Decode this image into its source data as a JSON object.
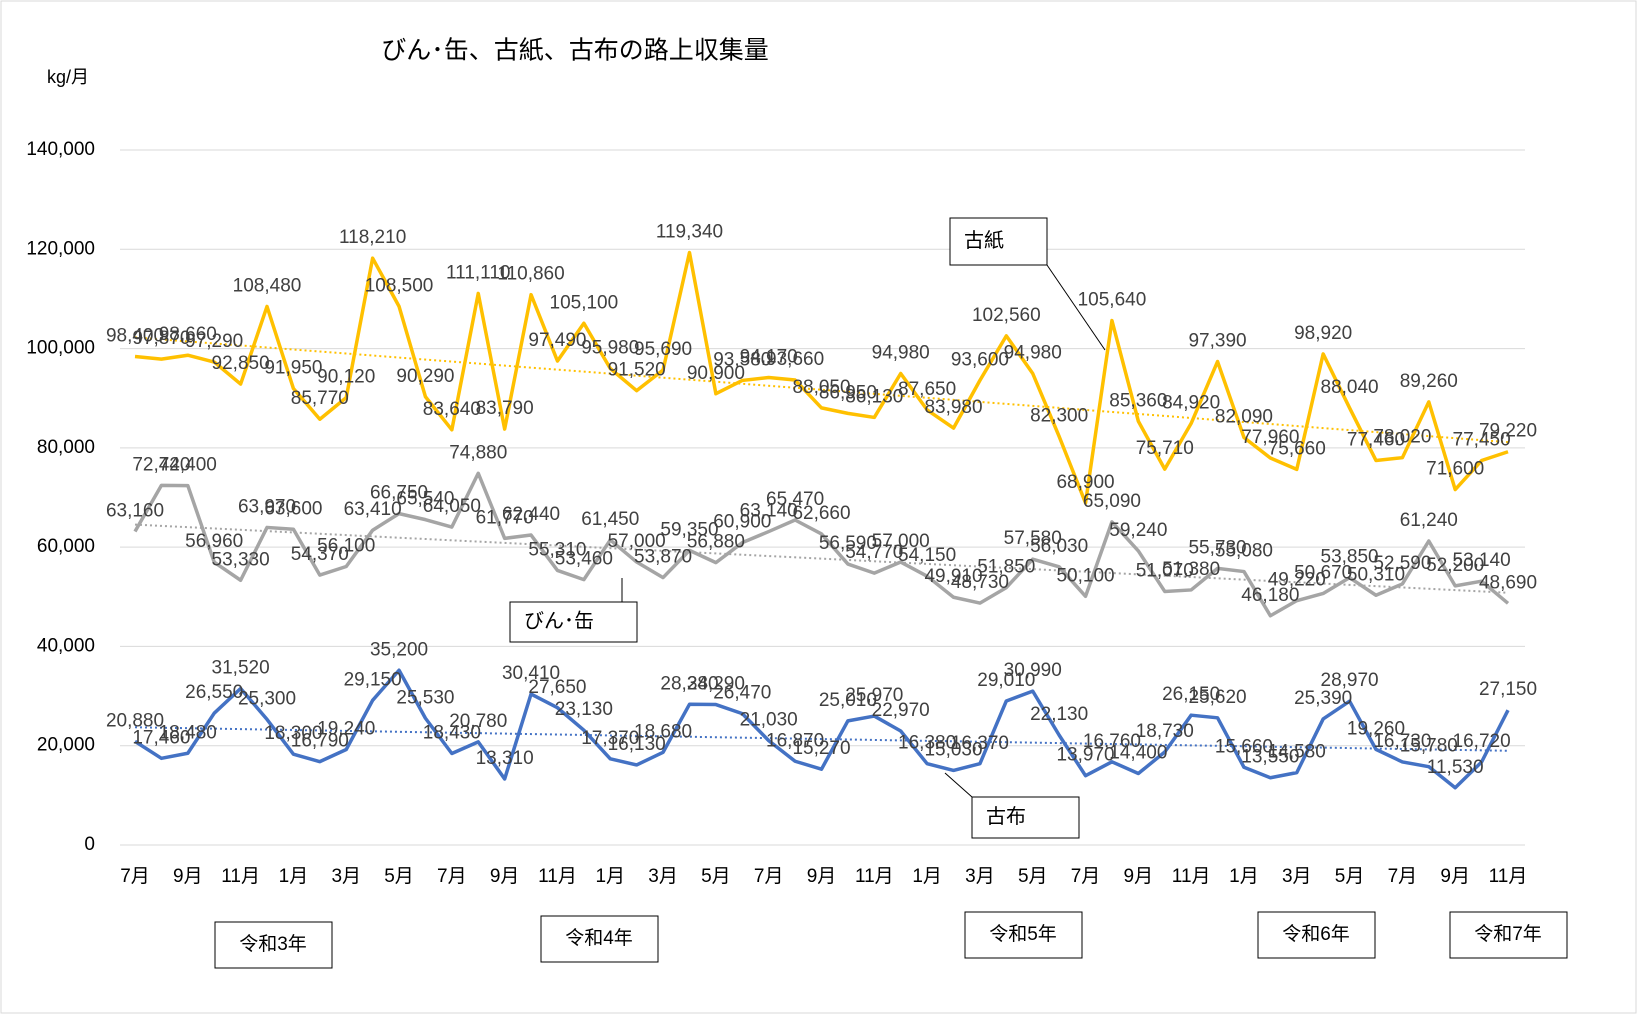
{
  "chart_data": {
    "type": "line",
    "title": "びん･缶、古紙、古布の路上収集量",
    "y_label": "kg/月",
    "categories": [
      "7月",
      null,
      "9月",
      null,
      "11月",
      null,
      "1月",
      null,
      "3月",
      null,
      "5月",
      null,
      "7月",
      null,
      "9月",
      null,
      "11月",
      null,
      "1月",
      null,
      "3月",
      null,
      "5月",
      null,
      "7月",
      null,
      "9月",
      null,
      "11月",
      null,
      "1月",
      null,
      "3月",
      null,
      "5月",
      null,
      "7月",
      null,
      "9月",
      null,
      "11月",
      null,
      "1月",
      null,
      "3月",
      null,
      "5月",
      null,
      "7月",
      null,
      "9月",
      null,
      "11月"
    ],
    "ylim": [
      0,
      140000
    ],
    "yticks": [
      0,
      {
        "value": 20000,
        "label": "20,000"
      },
      {
        "value": 40000,
        "label": "40,000"
      },
      {
        "value": 60000,
        "label": "60,000"
      },
      {
        "value": 80000,
        "label": "80,000"
      },
      {
        "value": 100000,
        "label": "100,000"
      },
      {
        "value": 120000,
        "label": "120,000"
      },
      {
        "value": 140000,
        "label": "140,000"
      }
    ],
    "grid": true,
    "trendline": true,
    "series": [
      {
        "name": "古紙",
        "color": "#ffc000",
        "trend_color": "#ffc000",
        "values": [
          98400,
          97870,
          98660,
          97290,
          92850,
          108480,
          91950,
          85770,
          90120,
          118210,
          108500,
          90290,
          83640,
          111110,
          83790,
          110860,
          97490,
          105100,
          95980,
          91520,
          95690,
          119340,
          90900,
          93580,
          94170,
          93660,
          88050,
          86950,
          86130,
          94980,
          87650,
          83980,
          93600,
          102560,
          94980,
          82300,
          68900,
          105640,
          85360,
          75710,
          84920,
          97390,
          82090,
          77960,
          75660,
          98920,
          88040,
          77460,
          78020,
          89260,
          71600,
          77450,
          79220
        ],
        "value_labels": [
          "98,400",
          "97,870",
          "98,660",
          "97,290",
          "92,850",
          "108,480",
          "91,950",
          "85,770",
          "90,120",
          "118,210",
          "108,500",
          "90,290",
          "83,640",
          "111,110",
          "83,790",
          "110,860",
          "97,490",
          "105,100",
          "95,980",
          "91,520",
          "95,690",
          "119,340",
          "90,900",
          "93,580",
          "94,170",
          "93,660",
          "88,050",
          "86,950",
          "86,130",
          "94,980",
          "87,650",
          "83,980",
          "93,600",
          "102,560",
          "94,980",
          "82,300",
          "68,900",
          "105,640",
          "85,360",
          "75,710",
          "84,920",
          "97,390",
          "82,090",
          "77,960",
          "75,660",
          "98,920",
          "88,040",
          "77,460",
          "78,020",
          "89,260",
          "71,600",
          "77,450",
          "79,220"
        ]
      },
      {
        "name": "びん･缶",
        "color": "#a5a5a5",
        "trend_color": "#a5a5a5",
        "values": [
          63160,
          72440,
          72400,
          56960,
          53330,
          63970,
          63600,
          54370,
          56100,
          63410,
          66750,
          65540,
          64050,
          74880,
          61770,
          62440,
          55310,
          53460,
          61450,
          57000,
          53870,
          59350,
          56880,
          60900,
          63140,
          65470,
          62660,
          56590,
          54770,
          57000,
          54150,
          49910,
          48730,
          51850,
          57580,
          56030,
          50100,
          65090,
          59240,
          51070,
          51380,
          55730,
          55080,
          46180,
          49220,
          50670,
          53850,
          50310,
          52590,
          61240,
          52200,
          53140,
          48690
        ],
        "value_labels": [
          "63,160",
          "72,440",
          "72,400",
          "56,960",
          "53,330",
          "63,970",
          "63,600",
          "54,370",
          "56,100",
          "63,410",
          "66,750",
          "65,540",
          "64,050",
          "74,880",
          "61,770",
          "62,440",
          "55,310",
          "53,460",
          "61,450",
          "57,000",
          "53,870",
          "59,350",
          "56,880",
          "60,900",
          "63,140",
          "65,470",
          "62,660",
          "56,590",
          "54,770",
          "57,000",
          "54,150",
          "49,910",
          "48,730",
          "51,850",
          "57,580",
          "56,030",
          "50,100",
          "65,090",
          "59,240",
          "51,070",
          "51,380",
          "55,730",
          "55,080",
          "46,180",
          "49,220",
          "50,670",
          "53,850",
          "50,310",
          "52,590",
          "61,240",
          "52,200",
          "53,140",
          "48,690"
        ]
      },
      {
        "name": "古布",
        "color": "#4472c4",
        "trend_color": "#4472c4",
        "values": [
          20880,
          17460,
          18480,
          26550,
          31520,
          25300,
          18300,
          16790,
          19240,
          29150,
          35200,
          25530,
          18430,
          20780,
          13310,
          30410,
          27650,
          23130,
          17370,
          16130,
          18680,
          28340,
          28290,
          26470,
          21030,
          16870,
          15270,
          25010,
          25970,
          22970,
          16380,
          15030,
          16370,
          29010,
          30990,
          22130,
          13970,
          16760,
          14400,
          18730,
          26150,
          25620,
          15660,
          13550,
          14580,
          25390,
          28970,
          19260,
          16730,
          15780,
          11530,
          16720,
          27150
        ],
        "value_labels": [
          "20,880",
          "17,460",
          "18,480",
          "26,550",
          "31,520",
          "25,300",
          "18,300",
          "16,790",
          "19,240",
          "29,150",
          "35,200",
          "25,530",
          "18,430",
          "20,780",
          "13,310",
          "30,410",
          "27,650",
          "23,130",
          "17,370",
          "16,130",
          "18,680",
          "28,340",
          "28,290",
          "26,470",
          "21,030",
          "16,870",
          "15,270",
          "25,010",
          "25,970",
          "22,970",
          "16,380",
          "15,030",
          "16,370",
          "29,010",
          "30,990",
          "22,130",
          "13,970",
          "16,760",
          "14,400",
          "18,730",
          "26,150",
          "25,620",
          "15,660",
          "13,550",
          "14,580",
          "25,390",
          "28,970",
          "19,260",
          "16,730",
          "15,780",
          "11,530",
          "16,720",
          "27,150"
        ]
      }
    ],
    "year_labels": [
      "令和3年",
      "令和4年",
      "令和5年",
      "令和6年",
      "令和7年"
    ]
  }
}
